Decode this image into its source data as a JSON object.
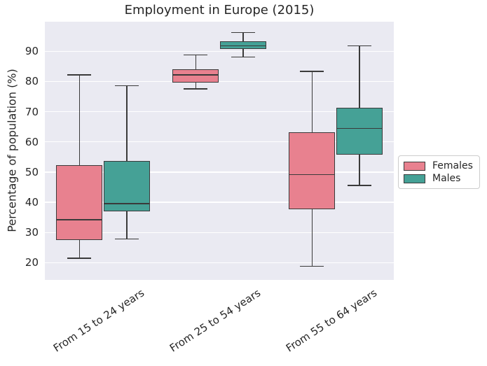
{
  "chart_data": {
    "type": "boxplot",
    "title": "Employment in Europe (2015)",
    "ylabel": "Percentage of population (%)",
    "xlabel": "",
    "categories": [
      "From 15 to 24 years",
      "From 25 to 54 years",
      "From 55 to 64 years"
    ],
    "yticks": [
      20,
      30,
      40,
      50,
      60,
      70,
      80,
      90
    ],
    "ylim": [
      14.3,
      99.8
    ],
    "grid": true,
    "legend_position": "outside center right",
    "series": [
      {
        "name": "Females",
        "color": "#e8818f",
        "boxes": [
          {
            "whislo": 21.5,
            "q1": 27.6,
            "med": 34.2,
            "q3": 52.4,
            "whishi": 82.2
          },
          {
            "whislo": 77.6,
            "q1": 79.7,
            "med": 82.2,
            "q3": 84.0,
            "whishi": 88.8
          },
          {
            "whislo": 18.8,
            "q1": 37.8,
            "med": 49.2,
            "q3": 63.1,
            "whishi": 83.4
          }
        ]
      },
      {
        "name": "Males",
        "color": "#45a196",
        "boxes": [
          {
            "whislo": 27.8,
            "q1": 37.0,
            "med": 39.5,
            "q3": 53.7,
            "whishi": 78.6
          },
          {
            "whislo": 88.1,
            "q1": 90.8,
            "med": 91.8,
            "q3": 93.2,
            "whishi": 96.2
          },
          {
            "whislo": 45.6,
            "q1": 55.8,
            "med": 64.5,
            "q3": 71.2,
            "whishi": 91.8
          }
        ]
      }
    ]
  },
  "colors": {
    "plot_background": "#eaeaf2",
    "gridline": "#ffffff",
    "box_edge": "#3a3a3a",
    "text": "#262626",
    "legend_border": "#cccccc",
    "legend_background": "#ffffff",
    "females": "#e8818f",
    "males": "#45a196"
  }
}
